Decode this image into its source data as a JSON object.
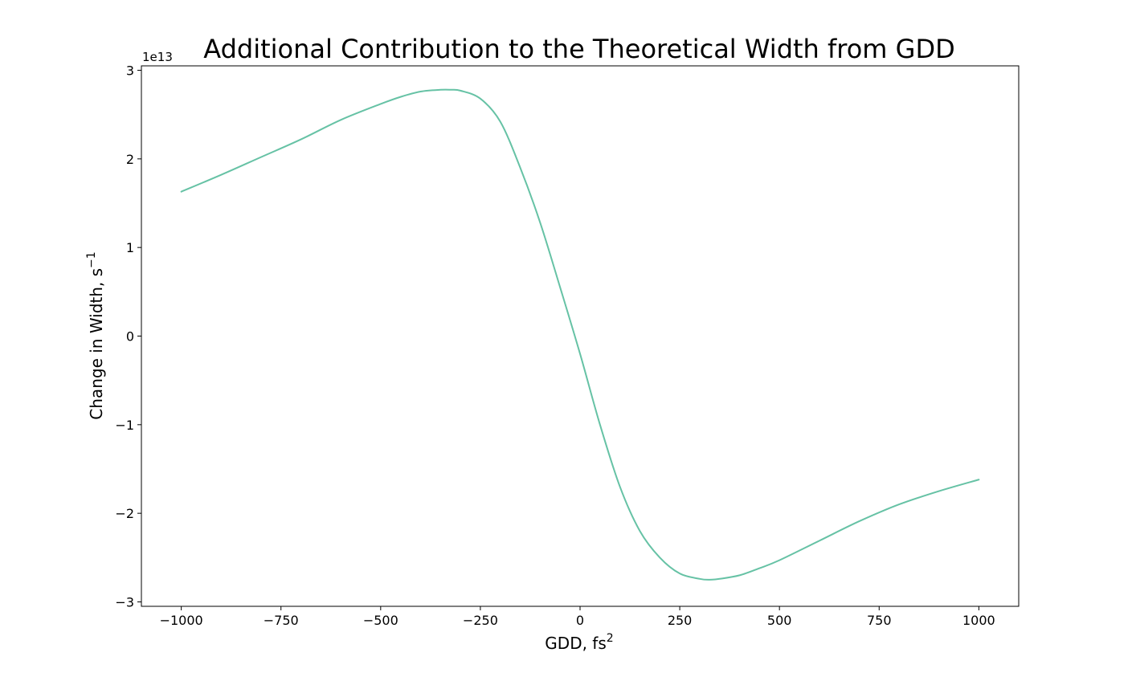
{
  "chart_data": {
    "type": "line",
    "title": "Additional Contribution to the Theoretical Width from GDD",
    "xlabel": "GDD, fs",
    "xlabel_superscript": "2",
    "ylabel": "Change in Width, s",
    "ylabel_superscript": "−1",
    "y_offset_label": "1e13",
    "y_scale_factor": 10000000000000.0,
    "xlim": [
      -1100,
      1100
    ],
    "ylim": [
      -3.05,
      3.05
    ],
    "x_ticks": [
      -1000,
      -750,
      -500,
      -250,
      0,
      250,
      500,
      750,
      1000
    ],
    "x_tick_labels": [
      "−1000",
      "−750",
      "−500",
      "−250",
      "0",
      "250",
      "500",
      "750",
      "1000"
    ],
    "y_ticks": [
      -3,
      -2,
      -1,
      0,
      1,
      2,
      3
    ],
    "y_tick_labels": [
      "−3",
      "−2",
      "−1",
      "0",
      "1",
      "2",
      "3"
    ],
    "grid": false,
    "legend": "none",
    "series": [
      {
        "color": "#66c2a5",
        "points": [
          {
            "x": -1000,
            "y": 1.63
          },
          {
            "x": -900,
            "y": 1.82
          },
          {
            "x": -800,
            "y": 2.02
          },
          {
            "x": -700,
            "y": 2.22
          },
          {
            "x": -600,
            "y": 2.44
          },
          {
            "x": -500,
            "y": 2.62
          },
          {
            "x": -450,
            "y": 2.7
          },
          {
            "x": -400,
            "y": 2.76
          },
          {
            "x": -350,
            "y": 2.78
          },
          {
            "x": -325,
            "y": 2.78
          },
          {
            "x": -300,
            "y": 2.77
          },
          {
            "x": -250,
            "y": 2.68
          },
          {
            "x": -200,
            "y": 2.42
          },
          {
            "x": -150,
            "y": 1.9
          },
          {
            "x": -100,
            "y": 1.28
          },
          {
            "x": -50,
            "y": 0.55
          },
          {
            "x": 0,
            "y": -0.2
          },
          {
            "x": 50,
            "y": -1.0
          },
          {
            "x": 100,
            "y": -1.7
          },
          {
            "x": 150,
            "y": -2.2
          },
          {
            "x": 200,
            "y": -2.5
          },
          {
            "x": 250,
            "y": -2.68
          },
          {
            "x": 300,
            "y": -2.74
          },
          {
            "x": 325,
            "y": -2.75
          },
          {
            "x": 350,
            "y": -2.74
          },
          {
            "x": 400,
            "y": -2.7
          },
          {
            "x": 450,
            "y": -2.62
          },
          {
            "x": 500,
            "y": -2.53
          },
          {
            "x": 600,
            "y": -2.31
          },
          {
            "x": 700,
            "y": -2.09
          },
          {
            "x": 800,
            "y": -1.9
          },
          {
            "x": 900,
            "y": -1.75
          },
          {
            "x": 1000,
            "y": -1.62
          }
        ]
      }
    ]
  }
}
